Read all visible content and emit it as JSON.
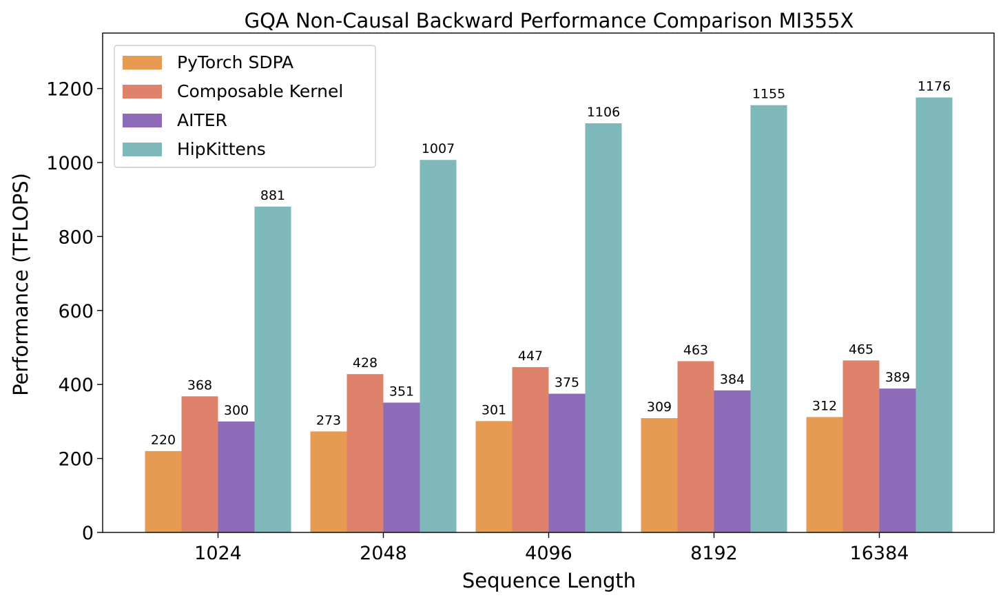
{
  "chart_data": {
    "type": "bar",
    "title": "GQA Non-Causal Backward Performance Comparison MI355X",
    "xlabel": "Sequence Length",
    "ylabel": "Performance (TFLOPS)",
    "categories": [
      "1024",
      "2048",
      "4096",
      "8192",
      "16384"
    ],
    "ylim": [
      0,
      1350
    ],
    "yticks": [
      0,
      200,
      400,
      600,
      800,
      1000,
      1200
    ],
    "grid": false,
    "legend_position": "top-left",
    "series": [
      {
        "name": "PyTorch SDPA",
        "color": "#E69A52",
        "values": [
          220,
          273,
          301,
          309,
          312
        ]
      },
      {
        "name": "Composable Kernel",
        "color": "#DF826C",
        "values": [
          368,
          428,
          447,
          463,
          465
        ]
      },
      {
        "name": "AITER",
        "color": "#8E6BB8",
        "values": [
          300,
          351,
          375,
          384,
          389
        ]
      },
      {
        "name": "HipKittens",
        "color": "#7EB8BB",
        "values": [
          881,
          1007,
          1106,
          1155,
          1176
        ]
      }
    ]
  }
}
